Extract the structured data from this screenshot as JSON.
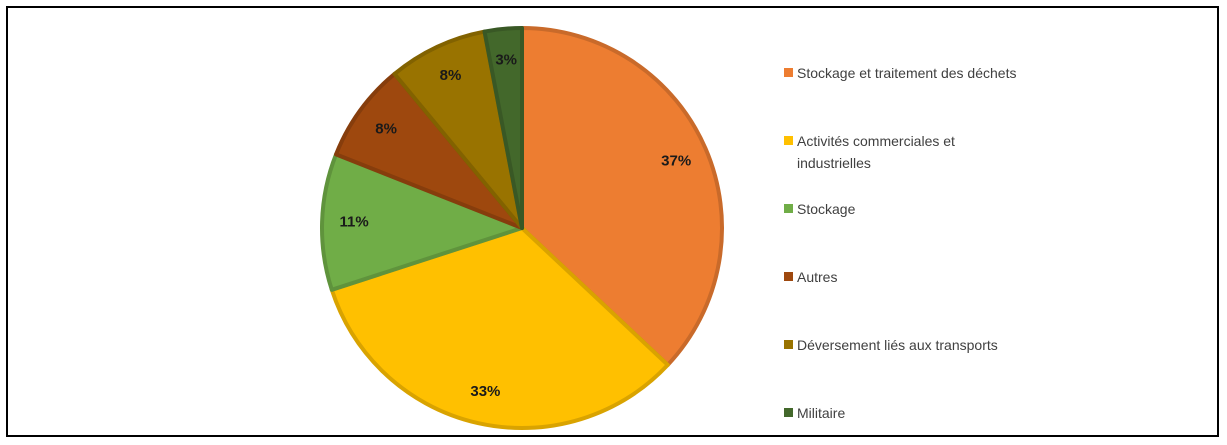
{
  "chart_data": {
    "type": "pie",
    "title": "",
    "slices": [
      {
        "label": "Stockage et traitement des déchets",
        "value": 37,
        "display": "37%",
        "color": "#ED7D31"
      },
      {
        "label": "Activités commerciales et industrielles",
        "value": 33,
        "display": "33%",
        "color": "#FFC000"
      },
      {
        "label": "Stockage",
        "value": 11,
        "display": "11%",
        "color": "#70AD47"
      },
      {
        "label": "Autres",
        "value": 8,
        "display": "8%",
        "color": "#9E480E"
      },
      {
        "label": "Déversement liés aux transports",
        "value": 8,
        "display": "8%",
        "color": "#997300"
      },
      {
        "label": "Militaire",
        "value": 3,
        "display": "3%",
        "color": "#43682B"
      }
    ],
    "legend_position": "right",
    "start_angle_deg": 0,
    "direction": "clockwise"
  }
}
